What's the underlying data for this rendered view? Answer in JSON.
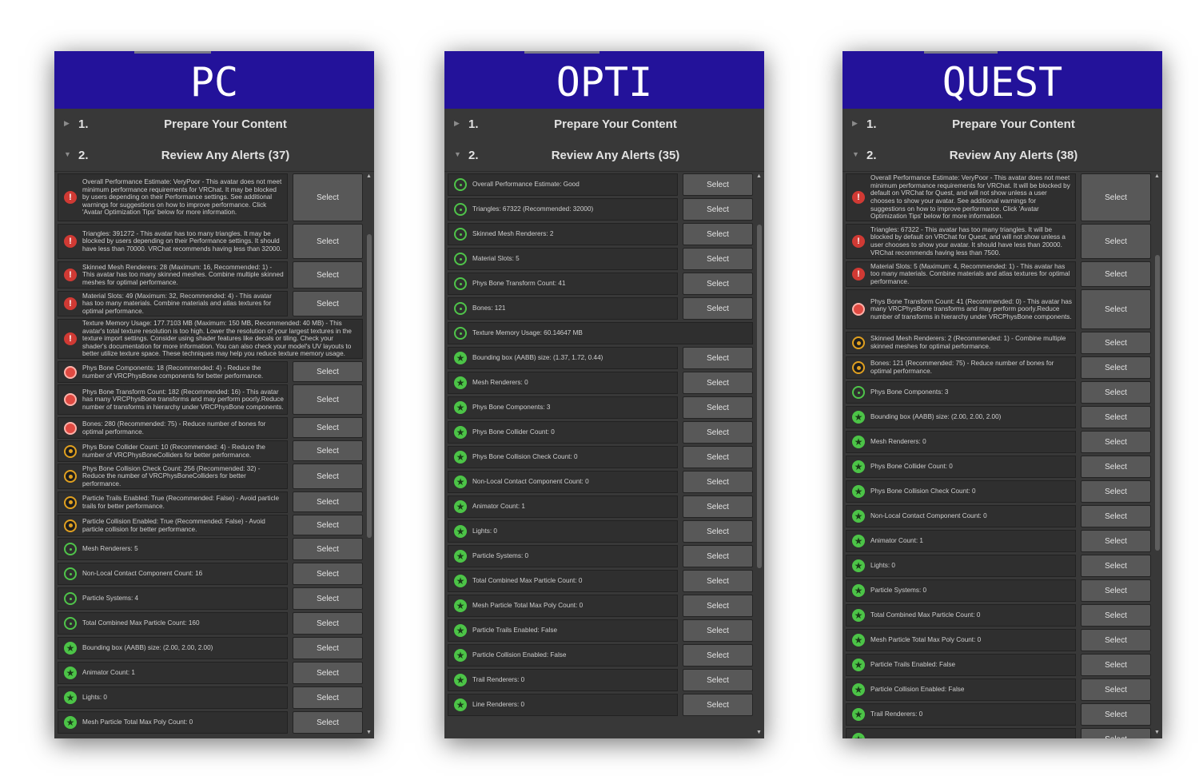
{
  "panels": [
    {
      "id": "pc",
      "title": "PC",
      "sections": [
        {
          "num": "1.",
          "title": "Prepare Your Content",
          "expanded": false
        },
        {
          "num": "2.",
          "title": "Review Any Alerts (37)",
          "expanded": true
        }
      ],
      "alerts": [
        {
          "icon": "error",
          "text": "Overall Performance Estimate: VeryPoor - This avatar does not meet minimum performance requirements for VRChat. It may be blocked by users depending on their Performance settings. See additional warnings for suggestions on how to improve performance. Click 'Avatar Optimization Tips' below for more information.",
          "button": "Select"
        },
        {
          "icon": "error",
          "text": "Triangles: 391272 - This avatar has too many triangles. It may be blocked by users depending on their Performance settings. It should have less than 70000. VRChat recommends having less than 32000.",
          "button": "Select"
        },
        {
          "icon": "error",
          "text": "Skinned Mesh Renderers: 28 (Maximum: 16, Recommended: 1) - This avatar has too many skinned meshes. Combine multiple skinned meshes for optimal performance.",
          "button": "Select"
        },
        {
          "icon": "error",
          "text": "Material Slots: 49 (Maximum: 32, Recommended: 4) - This avatar has too many materials. Combine materials and atlas textures for optimal performance.",
          "button": "Select"
        },
        {
          "icon": "error",
          "text": "Texture Memory Usage: 177.7103 MB (Maximum: 150 MB, Recommended: 40 MB) - This avatar's total texture resolution is too high. Lower the resolution of your largest textures in the texture import settings. Consider using shader features like decals or tiling. Check your shader's documentation for more information. You can also check your model's UV layouts to better utilize texture space. These techniques may help you reduce texture memory usage.",
          "button": ""
        },
        {
          "icon": "red",
          "text": "Phys Bone Components: 18 (Recommended: 4) - Reduce the number of VRCPhysBone components for better performance.",
          "button": "Select"
        },
        {
          "icon": "red",
          "text": "Phys Bone Transform Count: 182 (Recommended: 16) - This avatar has many VRCPhysBone transforms and may perform poorly.Reduce number of transforms in hierarchy under VRCPhysBone components.",
          "button": "Select"
        },
        {
          "icon": "red",
          "text": "Bones: 280 (Recommended: 75) - Reduce number of bones for optimal performance.",
          "button": "Select"
        },
        {
          "icon": "warn",
          "text": "Phys Bone Collider Count: 10 (Recommended: 4) - Reduce the number of VRCPhysBoneColliders for better performance.",
          "button": "Select"
        },
        {
          "icon": "warn",
          "text": "Phys Bone Collision Check Count: 256 (Recommended: 32) - Reduce the number of VRCPhysBoneColliders for better performance.",
          "button": "Select"
        },
        {
          "icon": "warn",
          "text": "Particle Trails Enabled: True (Recommended: False) - Avoid particle trails for better performance.",
          "button": "Select"
        },
        {
          "icon": "warn",
          "text": "Particle Collision Enabled: True (Recommended: False) - Avoid particle collision for better performance.",
          "button": "Select"
        },
        {
          "icon": "info",
          "text": "Mesh Renderers: 5",
          "button": "Select"
        },
        {
          "icon": "info",
          "text": "Non-Local Contact Component Count: 16",
          "button": "Select"
        },
        {
          "icon": "info",
          "text": "Particle Systems: 4",
          "button": "Select"
        },
        {
          "icon": "info",
          "text": "Total Combined Max Particle Count: 160",
          "button": "Select"
        },
        {
          "icon": "good",
          "text": "Bounding box (AABB) size: (2.00, 2.00, 2.00)",
          "button": "Select"
        },
        {
          "icon": "good",
          "text": "Animator Count: 1",
          "button": "Select"
        },
        {
          "icon": "good",
          "text": "Lights: 0",
          "button": "Select"
        },
        {
          "icon": "good",
          "text": "Mesh Particle Total Max Poly Count: 0",
          "button": "Select"
        }
      ]
    },
    {
      "id": "opti",
      "title": "OPTI",
      "sections": [
        {
          "num": "1.",
          "title": "Prepare Your Content",
          "expanded": false
        },
        {
          "num": "2.",
          "title": "Review Any Alerts (35)",
          "expanded": true
        }
      ],
      "alerts": [
        {
          "icon": "info",
          "text": "Overall Performance Estimate: Good",
          "button": "Select"
        },
        {
          "icon": "info",
          "text": "Triangles: 67322 (Recommended: 32000)",
          "button": "Select"
        },
        {
          "icon": "info",
          "text": "Skinned Mesh Renderers: 2",
          "button": "Select"
        },
        {
          "icon": "info",
          "text": "Material Slots: 5",
          "button": "Select"
        },
        {
          "icon": "info",
          "text": "Phys Bone Transform Count: 41",
          "button": "Select"
        },
        {
          "icon": "info",
          "text": "Bones: 121",
          "button": "Select"
        },
        {
          "icon": "info",
          "text": "Texture Memory Usage: 60.14647 MB",
          "button": ""
        },
        {
          "icon": "good",
          "text": "Bounding box (AABB) size: (1.37, 1.72, 0.44)",
          "button": "Select"
        },
        {
          "icon": "good",
          "text": "Mesh Renderers: 0",
          "button": "Select"
        },
        {
          "icon": "good",
          "text": "Phys Bone Components: 3",
          "button": "Select"
        },
        {
          "icon": "good",
          "text": "Phys Bone Collider Count: 0",
          "button": "Select"
        },
        {
          "icon": "good",
          "text": "Phys Bone Collision Check Count: 0",
          "button": "Select"
        },
        {
          "icon": "good",
          "text": "Non-Local Contact Component Count: 0",
          "button": "Select"
        },
        {
          "icon": "good",
          "text": "Animator Count: 1",
          "button": "Select"
        },
        {
          "icon": "good",
          "text": "Lights: 0",
          "button": "Select"
        },
        {
          "icon": "good",
          "text": "Particle Systems: 0",
          "button": "Select"
        },
        {
          "icon": "good",
          "text": "Total Combined Max Particle Count: 0",
          "button": "Select"
        },
        {
          "icon": "good",
          "text": "Mesh Particle Total Max Poly Count: 0",
          "button": "Select"
        },
        {
          "icon": "good",
          "text": "Particle Trails Enabled: False",
          "button": "Select"
        },
        {
          "icon": "good",
          "text": "Particle Collision Enabled: False",
          "button": "Select"
        },
        {
          "icon": "good",
          "text": "Trail Renderers: 0",
          "button": "Select"
        },
        {
          "icon": "good",
          "text": "Line Renderers: 0",
          "button": "Select"
        }
      ]
    },
    {
      "id": "quest",
      "title": "QUEST",
      "sections": [
        {
          "num": "1.",
          "title": "Prepare Your Content",
          "expanded": false
        },
        {
          "num": "2.",
          "title": "Review Any Alerts (38)",
          "expanded": true
        }
      ],
      "alerts": [
        {
          "icon": "error",
          "text": "Overall Performance Estimate: VeryPoor - This avatar does not meet minimum performance requirements for VRChat. It will be blocked by default on VRChat for Quest, and will not show unless a user chooses to show your avatar. See additional warnings for suggestions on how to improve performance. Click 'Avatar Optimization Tips' below for more information.",
          "button": "Select"
        },
        {
          "icon": "error",
          "text": "Triangles: 67322 - This avatar has too many triangles. It will be blocked by default on VRChat for Quest, and will not show unless a user chooses to show your avatar. It should have less than 20000. VRChat recommends having less than 7500.",
          "button": "Select"
        },
        {
          "icon": "error",
          "text": "Material Slots: 5 (Maximum: 4, Recommended: 1) - This avatar has too many materials. Combine materials and atlas textures for optimal performance.",
          "button": "Select"
        },
        {
          "icon": "red",
          "text": "Phys Bone Transform Count: 41 (Recommended: 0) - This avatar has many VRCPhysBone transforms and may perform poorly.Reduce number of transforms in hierarchy under VRCPhysBone components.",
          "button": "Select"
        },
        {
          "icon": "warn",
          "text": "Skinned Mesh Renderers: 2 (Recommended: 1) - Combine multiple skinned meshes for optimal performance.",
          "button": "Select"
        },
        {
          "icon": "warn",
          "text": "Bones: 121 (Recommended: 75) - Reduce number of bones for optimal performance.",
          "button": "Select"
        },
        {
          "icon": "info",
          "text": "Phys Bone Components: 3",
          "button": "Select"
        },
        {
          "icon": "good",
          "text": "Bounding box (AABB) size: (2.00, 2.00, 2.00)",
          "button": "Select"
        },
        {
          "icon": "good",
          "text": "Mesh Renderers: 0",
          "button": "Select"
        },
        {
          "icon": "good",
          "text": "Phys Bone Collider Count: 0",
          "button": "Select"
        },
        {
          "icon": "good",
          "text": "Phys Bone Collision Check Count: 0",
          "button": "Select"
        },
        {
          "icon": "good",
          "text": "Non-Local Contact Component Count: 0",
          "button": "Select"
        },
        {
          "icon": "good",
          "text": "Animator Count: 1",
          "button": "Select"
        },
        {
          "icon": "good",
          "text": "Lights: 0",
          "button": "Select"
        },
        {
          "icon": "good",
          "text": "Particle Systems: 0",
          "button": "Select"
        },
        {
          "icon": "good",
          "text": "Total Combined Max Particle Count: 0",
          "button": "Select"
        },
        {
          "icon": "good",
          "text": "Mesh Particle Total Max Poly Count: 0",
          "button": "Select"
        },
        {
          "icon": "good",
          "text": "Particle Trails Enabled: False",
          "button": "Select"
        },
        {
          "icon": "good",
          "text": "Particle Collision Enabled: False",
          "button": "Select"
        },
        {
          "icon": "good",
          "text": "Trail Renderers: 0",
          "button": "Select"
        },
        {
          "icon": "good",
          "text": "",
          "button": "Select"
        }
      ]
    }
  ],
  "colors": {
    "header_bg": "#23129a",
    "panel_bg": "#383838",
    "error": "#d03a34",
    "warning": "#e0a020",
    "good": "#4cc447"
  }
}
